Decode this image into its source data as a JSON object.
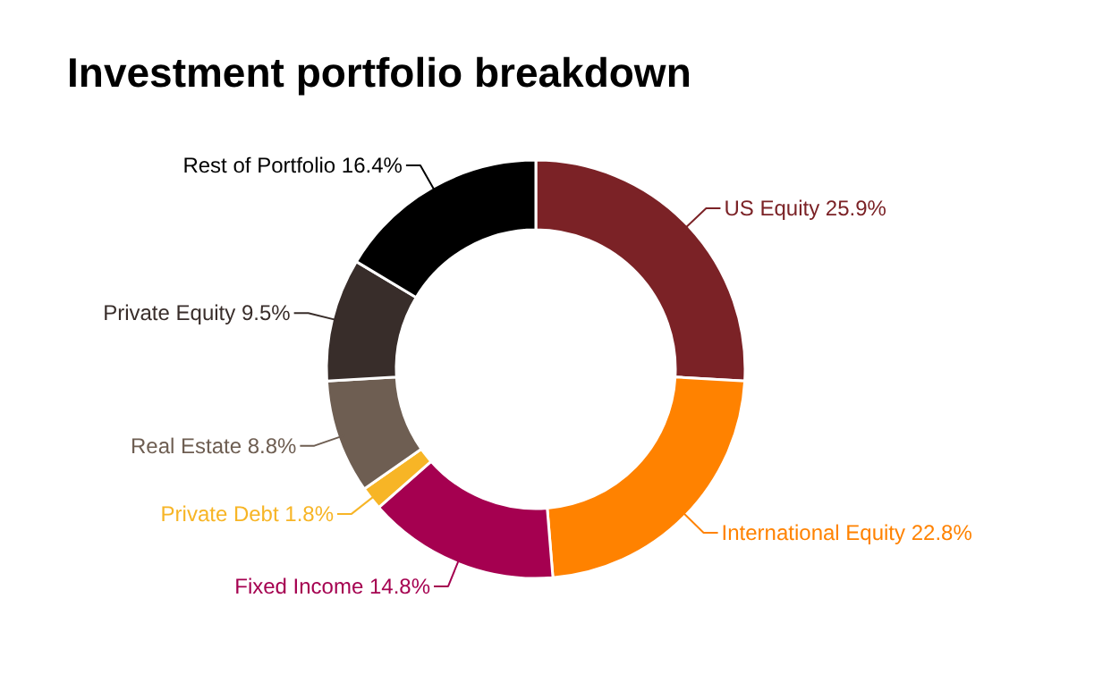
{
  "chart_data": {
    "type": "donut",
    "title": "Investment portfolio breakdown",
    "categories": [
      "US Equity",
      "International Equity",
      "Fixed Income",
      "Private Debt",
      "Real Estate",
      "Private Equity",
      "Rest of Portfolio"
    ],
    "values": [
      25.9,
      22.8,
      14.8,
      1.8,
      8.8,
      9.5,
      16.4
    ],
    "value_labels": [
      "25.9%",
      "22.8%",
      "14.8%",
      "1.8%",
      "8.8%",
      "9.5%",
      "16.4%"
    ],
    "colors": [
      "#7b2226",
      "#ff8200",
      "#a50050",
      "#f7b526",
      "#6e5e52",
      "#382d2a",
      "#000000"
    ]
  }
}
